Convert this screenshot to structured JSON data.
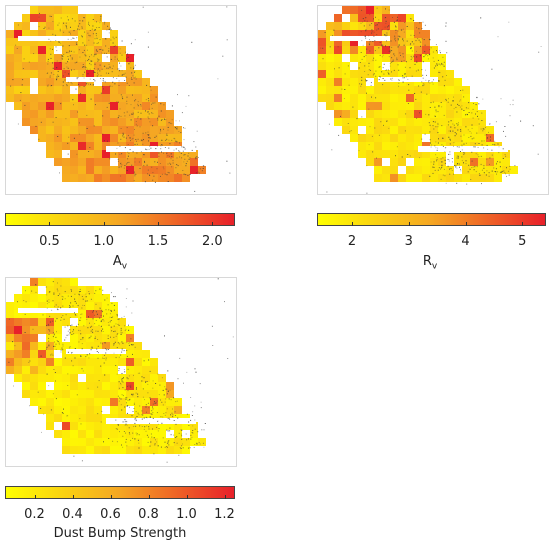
{
  "chart_data": [
    {
      "type": "heatmap",
      "id": "av",
      "colorbar": {
        "label_main": "A",
        "label_sub": "v",
        "min": 0.1,
        "max": 2.2,
        "ticks": [
          0.5,
          1.0,
          1.5,
          2.0
        ],
        "tick_labels": [
          "0.5",
          "1.0",
          "1.5",
          "2.0"
        ]
      },
      "typical_value_range": [
        0.7,
        1.5
      ]
    },
    {
      "type": "heatmap",
      "id": "rv",
      "colorbar": {
        "label_main": "R",
        "label_sub": "v",
        "min": 1.4,
        "max": 5.4,
        "ticks": [
          2,
          3,
          4,
          5
        ],
        "tick_labels": [
          "2",
          "3",
          "4",
          "5"
        ]
      },
      "typical_value_range": [
        1.6,
        3.0
      ]
    },
    {
      "type": "heatmap",
      "id": "bump",
      "colorbar": {
        "label_main": "Dust Bump Strength",
        "label_sub": "",
        "min": 0.05,
        "max": 1.25,
        "ticks": [
          0.2,
          0.4,
          0.6,
          0.8,
          1.0,
          1.2
        ],
        "tick_labels": [
          "0.2",
          "0.4",
          "0.6",
          "0.8",
          "1.0",
          "1.2"
        ]
      },
      "typical_value_range": [
        0.1,
        0.55
      ]
    }
  ],
  "colors": {
    "low": "#ffff00",
    "mid": "#f5a623",
    "high": "#e8202a",
    "stars": "#3a3a3a"
  }
}
